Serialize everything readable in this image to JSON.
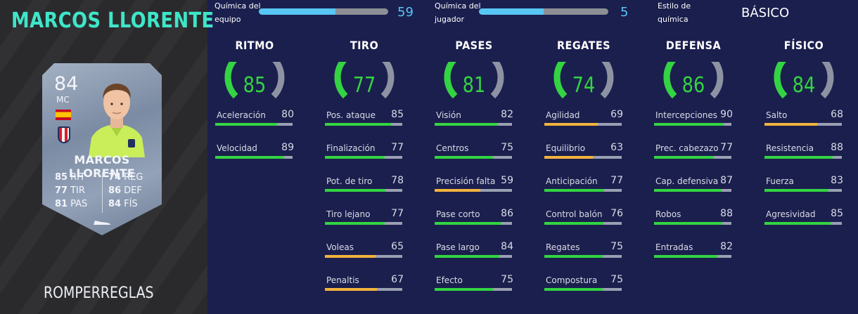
{
  "player": {
    "name": "MARCOS LLORENTE",
    "playstyle": "ROMPERREGLAS",
    "card": {
      "rating": "84",
      "position": "MC",
      "name": "MARCOS LLORENTE",
      "stats_left": [
        {
          "value": "85",
          "label": "RIT"
        },
        {
          "value": "77",
          "label": "TIR"
        },
        {
          "value": "81",
          "label": "PAS"
        }
      ],
      "stats_right": [
        {
          "value": "74",
          "label": "REG"
        },
        {
          "value": "86",
          "label": "DEF"
        },
        {
          "value": "84",
          "label": "FÍS"
        }
      ]
    }
  },
  "chemistry": {
    "team": {
      "label": "Química del equipo",
      "value": "59",
      "fraction": 0.59
    },
    "player": {
      "label": "Química del jugador",
      "value": "5",
      "fraction": 0.5
    },
    "style": {
      "label": "Estilo de química",
      "value": "BÁSICO"
    }
  },
  "colors": {
    "green": "#33d441",
    "orange": "#f2b33d",
    "blue": "#58c6f4",
    "teal": "#3ee6c8"
  },
  "categories": [
    {
      "title": "RITMO",
      "value": "85",
      "subs": [
        {
          "label": "Aceleración",
          "value": "80"
        },
        {
          "label": "Velocidad",
          "value": "89"
        }
      ]
    },
    {
      "title": "TIRO",
      "value": "77",
      "subs": [
        {
          "label": "Pos. ataque",
          "value": "85"
        },
        {
          "label": "Finalización",
          "value": "77"
        },
        {
          "label": "Pot. de tiro",
          "value": "78"
        },
        {
          "label": "Tiro lejano",
          "value": "77"
        },
        {
          "label": "Voleas",
          "value": "65"
        },
        {
          "label": "Penaltis",
          "value": "67"
        }
      ]
    },
    {
      "title": "PASES",
      "value": "81",
      "subs": [
        {
          "label": "Visión",
          "value": "82"
        },
        {
          "label": "Centros",
          "value": "75"
        },
        {
          "label": "Precisión falta",
          "value": "59"
        },
        {
          "label": "Pase corto",
          "value": "86"
        },
        {
          "label": "Pase largo",
          "value": "84"
        },
        {
          "label": "Efecto",
          "value": "75"
        }
      ]
    },
    {
      "title": "REGATES",
      "value": "74",
      "subs": [
        {
          "label": "Agilidad",
          "value": "69"
        },
        {
          "label": "Equilibrio",
          "value": "63"
        },
        {
          "label": "Anticipación",
          "value": "77"
        },
        {
          "label": "Control balón",
          "value": "76"
        },
        {
          "label": "Regates",
          "value": "75"
        },
        {
          "label": "Compostura",
          "value": "75"
        }
      ]
    },
    {
      "title": "DEFENSA",
      "value": "86",
      "subs": [
        {
          "label": "Intercepciones",
          "value": "90"
        },
        {
          "label": "Prec. cabezazo",
          "value": "77"
        },
        {
          "label": "Cap. defensiva",
          "value": "87"
        },
        {
          "label": "Robos",
          "value": "88"
        },
        {
          "label": "Entradas",
          "value": "82"
        }
      ]
    },
    {
      "title": "FÍSICO",
      "value": "84",
      "subs": [
        {
          "label": "Salto",
          "value": "68"
        },
        {
          "label": "Resistencia",
          "value": "88"
        },
        {
          "label": "Fuerza",
          "value": "83"
        },
        {
          "label": "Agresividad",
          "value": "85"
        }
      ]
    }
  ]
}
